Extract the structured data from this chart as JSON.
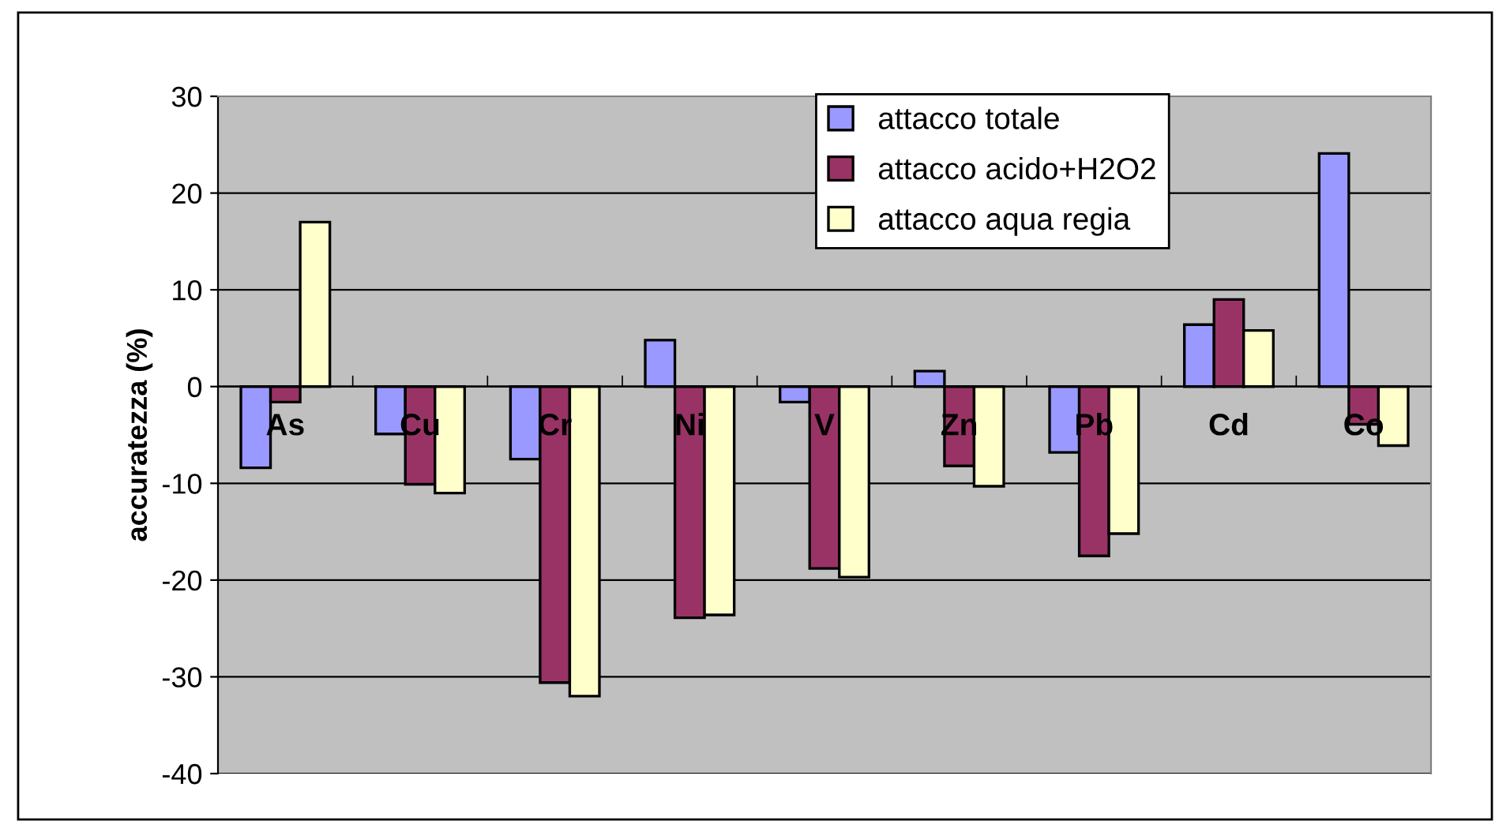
{
  "chart_data": {
    "type": "bar",
    "ylabel": "accuratezza (%)",
    "categories": [
      "As",
      "Cu",
      "Cr",
      "Ni",
      "V",
      "Zn",
      "Pb",
      "Cd",
      "Co"
    ],
    "series": [
      {
        "name": "attacco totale",
        "color": "#9999ff",
        "values": [
          -8.4,
          -4.9,
          -7.5,
          4.8,
          -1.6,
          1.6,
          -6.8,
          6.4,
          24.1
        ]
      },
      {
        "name": "attacco acido+H2O2",
        "color": "#993366",
        "values": [
          -1.6,
          -10.1,
          -30.6,
          -23.9,
          -18.8,
          -8.2,
          -17.5,
          9.0,
          -3.9
        ]
      },
      {
        "name": "attacco aqua regia",
        "color": "#ffffcc",
        "values": [
          17.0,
          -11.0,
          -32.0,
          -23.6,
          -19.7,
          -10.3,
          -15.2,
          5.8,
          -6.1
        ]
      }
    ],
    "ylim": [
      -40,
      30
    ],
    "yticks": [
      -40,
      -30,
      -20,
      -10,
      0,
      10,
      20,
      30
    ],
    "grid": "y",
    "legend": "top right"
  }
}
